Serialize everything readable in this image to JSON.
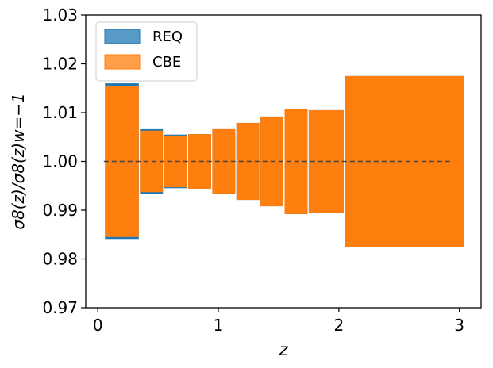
{
  "chart_data": {
    "type": "bar",
    "xlabel": "z",
    "ylabel": "σ8(z)/σ8(z)w=−1",
    "xlim": [
      -0.1,
      3.18
    ],
    "ylim": [
      0.97,
      1.03
    ],
    "xticks": [
      0,
      1,
      2,
      3
    ],
    "yticks": [
      0.97,
      0.98,
      0.99,
      1.0,
      1.01,
      1.02,
      1.03
    ],
    "ytick_labels": [
      "0.97",
      "0.98",
      "0.99",
      "1.00",
      "1.01",
      "1.02",
      "1.03"
    ],
    "reference_line": {
      "y": 1.0,
      "x_range": [
        0.05,
        2.95
      ],
      "style": "dashed",
      "color": "#444444"
    },
    "legend": {
      "position": "top-left",
      "entries": [
        "REQ",
        "CBE"
      ]
    },
    "colors": {
      "REQ": "#1f77b4",
      "CBE": "#ff7f0e"
    },
    "series": [
      {
        "name": "REQ",
        "bins": [
          {
            "x0": 0.06,
            "x1": 0.34,
            "low": 0.9841,
            "high": 1.016
          },
          {
            "x0": 0.35,
            "x1": 0.54,
            "low": 0.9934,
            "high": 1.0066
          },
          {
            "x0": 0.55,
            "x1": 0.74,
            "low": 0.9945,
            "high": 1.0055
          },
          {
            "x0": 0.75,
            "x1": 0.94,
            "low": 0.9944,
            "high": 1.0056
          },
          {
            "x0": 0.95,
            "x1": 1.14,
            "low": 0.9934,
            "high": 1.0066
          },
          {
            "x0": 1.15,
            "x1": 1.34,
            "low": 0.9921,
            "high": 1.0079
          },
          {
            "x0": 1.35,
            "x1": 1.54,
            "low": 0.9908,
            "high": 1.0092
          },
          {
            "x0": 1.55,
            "x1": 1.74,
            "low": 0.9892,
            "high": 1.0108
          },
          {
            "x0": 1.75,
            "x1": 2.04,
            "low": 0.9895,
            "high": 1.0105
          },
          {
            "x0": 2.05,
            "x1": 3.04,
            "low": 0.9825,
            "high": 1.0175
          }
        ]
      },
      {
        "name": "CBE",
        "bins": [
          {
            "x0": 0.06,
            "x1": 0.34,
            "low": 0.9845,
            "high": 1.0154
          },
          {
            "x0": 0.35,
            "x1": 0.54,
            "low": 0.9937,
            "high": 1.0063
          },
          {
            "x0": 0.55,
            "x1": 0.74,
            "low": 0.9947,
            "high": 1.0053
          },
          {
            "x0": 0.75,
            "x1": 0.94,
            "low": 0.9944,
            "high": 1.0056
          },
          {
            "x0": 0.95,
            "x1": 1.14,
            "low": 0.9934,
            "high": 1.0066
          },
          {
            "x0": 1.15,
            "x1": 1.34,
            "low": 0.9921,
            "high": 1.0079
          },
          {
            "x0": 1.35,
            "x1": 1.54,
            "low": 0.9908,
            "high": 1.0092
          },
          {
            "x0": 1.55,
            "x1": 1.74,
            "low": 0.9892,
            "high": 1.0108
          },
          {
            "x0": 1.75,
            "x1": 2.04,
            "low": 0.9895,
            "high": 1.0105
          },
          {
            "x0": 2.05,
            "x1": 3.04,
            "low": 0.9825,
            "high": 1.0175
          }
        ]
      }
    ]
  }
}
